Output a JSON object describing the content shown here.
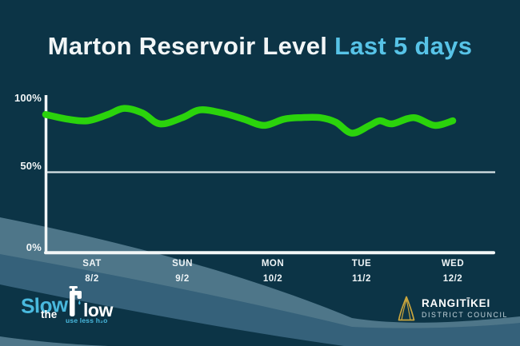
{
  "title": {
    "main": "Marton Reservoir Level",
    "accent": "Last 5 days"
  },
  "chart_data": {
    "type": "line",
    "title": "Marton Reservoir Level",
    "subtitle": "Last 5 days",
    "xlabel": "",
    "ylabel": "",
    "ylim": [
      0,
      100
    ],
    "grid": {
      "horizontal_lines_at": [
        50,
        0
      ],
      "vertical": false
    },
    "legend": "none",
    "y_ticks": [
      {
        "label": "100%",
        "value": 100
      },
      {
        "label": "50%",
        "value": 50
      },
      {
        "label": "0%",
        "value": 0
      }
    ],
    "x_ticks": [
      {
        "day": "SAT",
        "date": "8/2",
        "frac": 0.114
      },
      {
        "day": "SUN",
        "date": "9/2",
        "frac": 0.336
      },
      {
        "day": "MON",
        "date": "10/2",
        "frac": 0.558
      },
      {
        "day": "TUE",
        "date": "11/2",
        "frac": 0.776
      },
      {
        "day": "WED",
        "date": "12/2",
        "frac": 1.0
      }
    ],
    "series": [
      {
        "name": "reservoir-level-percent",
        "color": "#2bd30c",
        "points": [
          [
            0.0,
            89
          ],
          [
            0.055,
            86
          ],
          [
            0.104,
            85
          ],
          [
            0.153,
            89
          ],
          [
            0.193,
            93
          ],
          [
            0.238,
            90
          ],
          [
            0.281,
            83
          ],
          [
            0.336,
            87
          ],
          [
            0.379,
            92
          ],
          [
            0.434,
            90
          ],
          [
            0.487,
            86
          ],
          [
            0.536,
            82
          ],
          [
            0.585,
            86
          ],
          [
            0.625,
            87
          ],
          [
            0.674,
            87
          ],
          [
            0.713,
            84
          ],
          [
            0.752,
            77
          ],
          [
            0.796,
            82
          ],
          [
            0.821,
            85
          ],
          [
            0.851,
            83
          ],
          [
            0.904,
            87
          ],
          [
            0.955,
            82
          ],
          [
            1.0,
            85
          ]
        ]
      }
    ]
  },
  "logos": {
    "slow_the_flow": {
      "slow": "Slow",
      "the": "the",
      "flow_rest": "low",
      "tagline": "use less h₂o"
    },
    "council": {
      "name": "RANGITĪKEI",
      "subtitle": "DISTRICT COUNCIL"
    }
  },
  "colors": {
    "background": "#0c3446",
    "accent_blue": "#57c3e7",
    "line_green": "#2bd30c",
    "logo_blue": "#49b9de",
    "gold": "#c9a53d",
    "white": "#f2f6f7"
  }
}
